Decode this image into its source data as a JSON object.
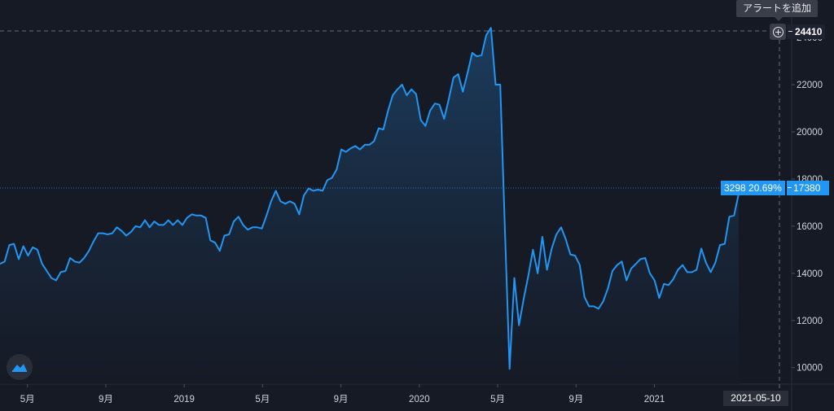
{
  "chart_data": {
    "type": "area",
    "title": "",
    "xlabel": "",
    "ylabel": "",
    "ylim": [
      9300,
      24900
    ],
    "yticks": [
      24000,
      22000,
      20000,
      18000,
      16000,
      14000,
      12000,
      10000
    ],
    "ytick_labels": [
      "24000",
      "22000",
      "20000",
      "18000",
      "16000",
      "14000",
      "12000",
      "10000"
    ],
    "xticks": [
      {
        "label": "5月",
        "x": "2018-05"
      },
      {
        "label": "9月",
        "x": "2018-09"
      },
      {
        "label": "2019",
        "x": "2019-01"
      },
      {
        "label": "5月",
        "x": "2019-05"
      },
      {
        "label": "9月",
        "x": "2019-09"
      },
      {
        "label": "2020",
        "x": "2020-01"
      },
      {
        "label": "5月",
        "x": "2020-05"
      },
      {
        "label": "9月",
        "x": "2020-09"
      },
      {
        "label": "2021",
        "x": "2021-01"
      }
    ],
    "grid": false,
    "line_color": "#2196f3",
    "fill_color_top": "#1c3f63",
    "fill_color_bottom": "#161a25",
    "series": [
      {
        "values": [
          14400,
          14500,
          15200,
          15250,
          14600,
          15150,
          14750,
          15100,
          15000,
          14400,
          14100,
          13800,
          13700,
          14050,
          14100,
          14650,
          14500,
          14450,
          14650,
          14950,
          15350,
          15700,
          15700,
          15650,
          15700,
          15950,
          15800,
          15600,
          15750,
          16000,
          15950,
          16250,
          15950,
          16200,
          16050,
          16050,
          16250,
          16050,
          16250,
          16050,
          16350,
          16500,
          16450,
          16450,
          16350,
          15400,
          15300,
          14950,
          15600,
          15650,
          16200,
          16400,
          16050,
          15850,
          15950,
          15950,
          15900,
          16450,
          17050,
          17500,
          17050,
          16950,
          17050,
          16950,
          16500,
          17300,
          17600,
          17500,
          17550,
          17500,
          17950,
          18050,
          18400,
          19250,
          19150,
          19300,
          19400,
          19250,
          19450,
          19450,
          19600,
          20150,
          20100,
          20900,
          21550,
          21800,
          22000,
          21550,
          21800,
          21600,
          20500,
          20250,
          20900,
          21200,
          21150,
          20550,
          21400,
          22300,
          22450,
          21700,
          22500,
          23350,
          23200,
          23250,
          24100,
          24410,
          22000,
          22000,
          15800,
          9950,
          13800,
          11800,
          12900,
          13900,
          15000,
          14000,
          15550,
          14150,
          15050,
          15650,
          15950,
          15450,
          14800,
          14750,
          14350,
          13000,
          12600,
          12600,
          12500,
          12800,
          13350,
          14100,
          14350,
          14500,
          13700,
          14200,
          14400,
          14600,
          14650,
          14000,
          13700,
          12950,
          13550,
          13500,
          13750,
          14150,
          14350,
          14050,
          14050,
          14150,
          15050,
          14450,
          14050,
          14450,
          15200,
          15250,
          16400,
          16450,
          17380
        ]
      }
    ]
  },
  "price_axis": {
    "high_value": "24410",
    "last_value": "17380"
  },
  "change_label": {
    "points": "3298",
    "percent": "20.69%"
  },
  "crosshair_date": "2021-05-10",
  "alert_tooltip": "アラートを追加",
  "colors": {
    "background": "#161a25",
    "line": "#2196f3",
    "last_price_tag": "#2196f3",
    "tooltip_bg": "#3a3e49"
  }
}
